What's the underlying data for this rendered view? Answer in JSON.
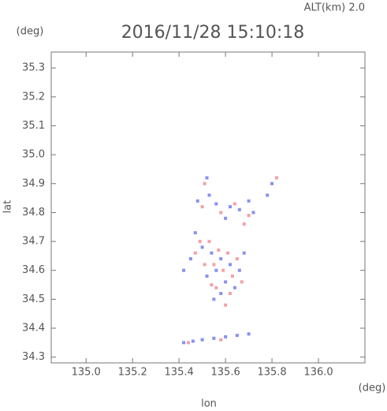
{
  "chart_data": {
    "type": "scatter",
    "title": "2016/11/28 15:10:18",
    "subtitle": "ALT(km) 2.0",
    "xlabel": "lon",
    "ylabel": "lat",
    "xunit": "(deg)",
    "yunit": "(deg)",
    "xlim": [
      134.85,
      136.2
    ],
    "ylim": [
      34.28,
      35.355
    ],
    "xticks": [
      {
        "value": 135,
        "label": "135.0"
      },
      135.2,
      135.4,
      135.6,
      135.8,
      {
        "value": 136,
        "label": "136.0"
      }
    ],
    "yticks": [
      34.3,
      34.4,
      34.5,
      34.6,
      34.7,
      34.8,
      34.9,
      {
        "value": 35,
        "label": "35.0"
      },
      35.1,
      35.2,
      35.3
    ],
    "series": [
      {
        "color": "#8890f0",
        "x": [
          135.52,
          135.53,
          135.48,
          135.56,
          135.62,
          135.66,
          135.7,
          135.72,
          135.78,
          135.8,
          135.6,
          135.47,
          135.5,
          135.54,
          135.58,
          135.62,
          135.66,
          135.56,
          135.52,
          135.6,
          135.64,
          135.58,
          135.55,
          135.45,
          135.42,
          135.68,
          135.42,
          135.46,
          135.5,
          135.55,
          135.6,
          135.65,
          135.7
        ],
        "y": [
          34.92,
          34.86,
          34.84,
          34.83,
          34.82,
          34.81,
          34.84,
          34.8,
          34.86,
          34.9,
          34.78,
          34.73,
          34.68,
          34.66,
          34.64,
          34.62,
          34.6,
          34.6,
          34.58,
          34.56,
          34.54,
          34.52,
          34.5,
          34.64,
          34.6,
          34.66,
          34.35,
          34.355,
          34.36,
          34.365,
          34.37,
          34.375,
          34.38
        ]
      },
      {
        "color": "#f4a0a8",
        "x": [
          135.82,
          135.51,
          135.5,
          135.58,
          135.64,
          135.68,
          135.7,
          135.49,
          135.53,
          135.57,
          135.61,
          135.65,
          135.55,
          135.59,
          135.63,
          135.51,
          135.54,
          135.62,
          135.6,
          135.56,
          135.67,
          135.47,
          135.44,
          135.58
        ],
        "y": [
          34.92,
          34.9,
          34.82,
          34.8,
          34.83,
          34.76,
          34.79,
          34.7,
          34.7,
          34.67,
          34.66,
          34.64,
          34.62,
          34.6,
          34.58,
          34.62,
          34.55,
          34.52,
          34.48,
          34.54,
          34.56,
          34.66,
          34.35,
          34.36
        ]
      }
    ]
  }
}
